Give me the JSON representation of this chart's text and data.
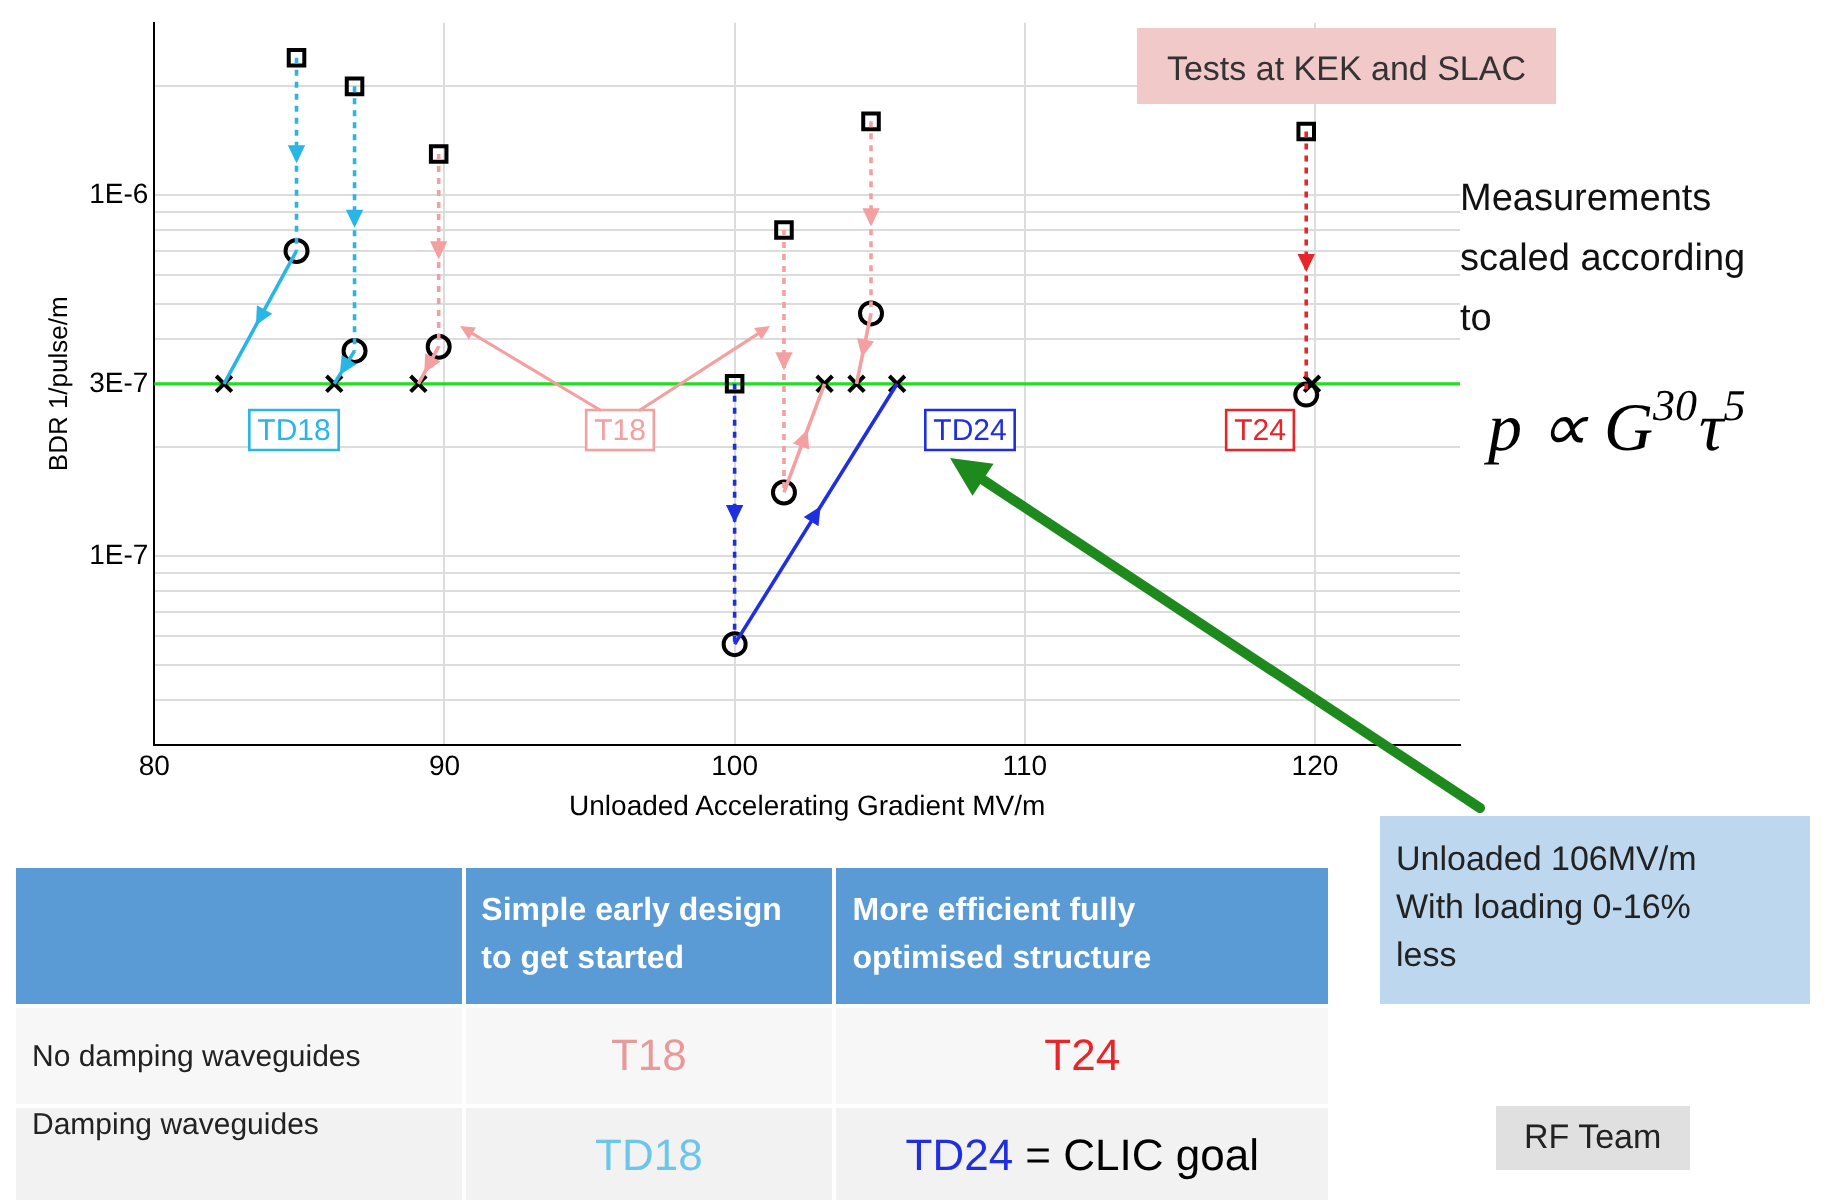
{
  "chart_data": [
    {
      "type": "line",
      "xlabel": "Unloaded Accelerating Gradient MV/m",
      "ylabel": "BDR 1/pulse/m",
      "log": "y",
      "grid": true,
      "legend": false,
      "xlim": [
        80,
        125
      ],
      "xticks": [
        80,
        90,
        100,
        110,
        120
      ],
      "ylim": [
        3e-08,
        3e-06
      ],
      "yticks": [
        {
          "value": 4e-08,
          "label": null
        },
        {
          "value": 5e-08,
          "label": null
        },
        {
          "value": 6e-08,
          "label": null
        },
        {
          "value": 7e-08,
          "label": null
        },
        {
          "value": 8e-08,
          "label": null
        },
        {
          "value": 9e-08,
          "label": null
        },
        {
          "value": 1e-07,
          "label": "1E-7"
        },
        {
          "value": 2e-07,
          "label": null
        },
        {
          "value": 3e-07,
          "label": "3E-7"
        },
        {
          "value": 4e-07,
          "label": null
        },
        {
          "value": 5e-07,
          "label": null
        },
        {
          "value": 6e-07,
          "label": null
        },
        {
          "value": 7e-07,
          "label": null
        },
        {
          "value": 8e-07,
          "label": null
        },
        {
          "value": 9e-07,
          "label": null
        },
        {
          "value": 1e-06,
          "label": "1E-6"
        },
        {
          "value": 2e-06,
          "label": null
        }
      ],
      "series": [
        {
          "type": "line",
          "color": "#29b6e6",
          "line_style": "dotted",
          "x": [
            84.9,
            84.9,
            85.9,
            86.9,
            86.9
          ],
          "values": [
            2.4e-06,
            7e-07,
            null,
            2e-06,
            3.7e-07
          ]
        },
        {
          "type": "line",
          "color": "#29b6e6",
          "line_style": "solid",
          "x": [
            84.9,
            82.4,
            84.5,
            86.9,
            86.2
          ],
          "values": [
            7e-07,
            3e-07,
            null,
            3.7e-07,
            3e-07
          ]
        },
        {
          "type": "line",
          "color": "#f4a0a0",
          "line_style": "dotted",
          "x": [
            89.8,
            89.8,
            95,
            101.7,
            101.7,
            103,
            104.7,
            104.7
          ],
          "values": [
            1.3e-06,
            3.8e-07,
            null,
            8e-07,
            1.5e-07,
            null,
            1.6e-06,
            4.7e-07
          ]
        },
        {
          "type": "line",
          "color": "#f4a0a0",
          "line_style": "solid",
          "x": [
            89.8,
            89.1,
            95,
            101.7,
            103.1,
            104,
            104.7,
            104.2
          ],
          "values": [
            3.8e-07,
            3e-07,
            null,
            1.5e-07,
            3e-07,
            null,
            4.7e-07,
            3e-07
          ]
        },
        {
          "type": "line",
          "color": "#1f2fe0",
          "line_style": "dotted",
          "x": [
            100,
            100
          ],
          "values": [
            3e-07,
            5.7e-08
          ]
        },
        {
          "type": "line",
          "color": "#1f2fe0",
          "line_style": "solid",
          "x": [
            100,
            105.6
          ],
          "values": [
            5.7e-08,
            3e-07
          ]
        },
        {
          "type": "line",
          "color": "#e8262a",
          "line_style": "dotted",
          "x": [
            119.7,
            119.7
          ],
          "values": [
            1.5e-06,
            2.8e-07
          ]
        },
        {
          "type": "scatter",
          "color": "#000000",
          "marker": "square",
          "x": [
            84.9,
            86.9,
            89.8,
            101.7,
            104.7,
            100,
            119.7
          ],
          "values": [
            2.4e-06,
            2e-06,
            1.3e-06,
            8e-07,
            1.6e-06,
            3e-07,
            1.5e-06
          ]
        },
        {
          "type": "scatter",
          "color": "#000000",
          "marker": "circle",
          "x": [
            84.9,
            86.9,
            89.8,
            101.7,
            104.7,
            100,
            119.7
          ],
          "values": [
            7e-07,
            3.7e-07,
            3.8e-07,
            1.5e-07,
            4.7e-07,
            5.7e-08,
            2.8e-07
          ]
        },
        {
          "type": "scatter",
          "color": "#000000",
          "marker": "cross",
          "x": [
            82.4,
            86.2,
            89.1,
            103.1,
            104.2,
            105.6,
            119.9
          ],
          "values": [
            3e-07,
            3e-07,
            3e-07,
            3e-07,
            3e-07,
            3e-07,
            3e-07
          ]
        }
      ],
      "ref_lines": [
        {
          "axis": "y",
          "value": 3e-07,
          "color": "#22dd22"
        }
      ],
      "annotations": [
        "Tests at KEK and SLAC",
        "Measurements scaled according to",
        "p ∝ G$^{30}$τ$^{5}$",
        "Unloaded 106MV/m With loading 0-16% less",
        "TD18",
        "T18",
        "TD24",
        "T24"
      ]
    },
    {
      "type": "other",
      "categories": [
        "Simple early design to get started",
        "More efficient fully optimised structure"
      ],
      "y_categories": [
        "No damping waveguides",
        "Damping waveguides"
      ],
      "cell_labels": [
        [
          "T18",
          "T24"
        ],
        [
          "TD18",
          "TD24 = CLIC goal"
        ]
      ],
      "annotations": [
        "RF Team"
      ]
    }
  ]
}
